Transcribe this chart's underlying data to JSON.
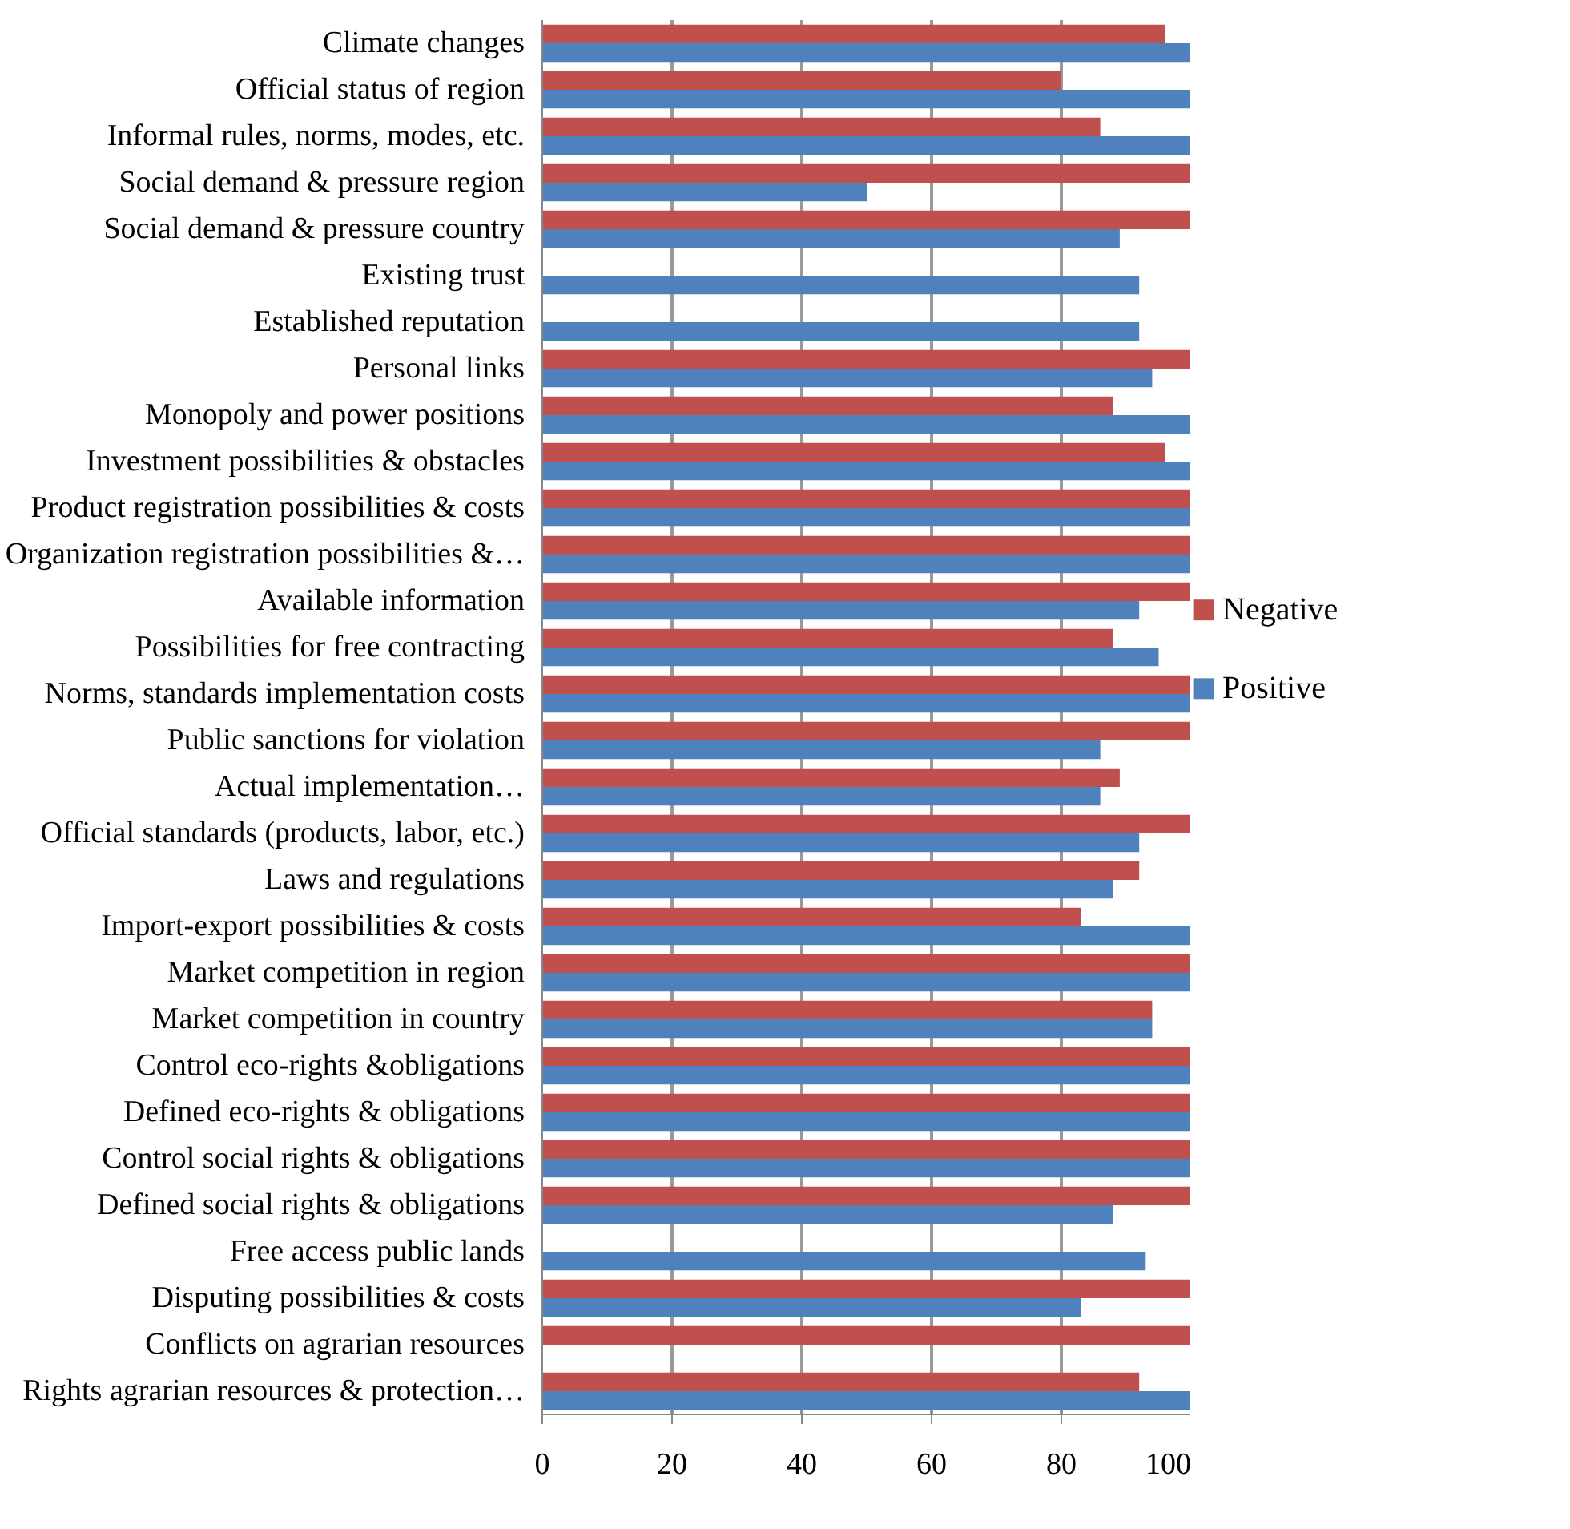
{
  "chart_data": {
    "type": "bar",
    "orientation": "horizontal",
    "categories": [
      "Climate changes",
      "Official status of region",
      "Informal rules, norms, modes, etc.",
      "Social demand & pressure region",
      "Social demand & pressure country",
      "Existing trust",
      "Established reputation",
      "Personal links",
      "Monopoly and power positions",
      "Investment possibilities & obstacles",
      "Product registration possibilities & costs",
      "Organization registration possibilities &…",
      "Available information",
      "Possibilities for free contracting",
      "Norms, standards implementation costs",
      "Public sanctions for violation",
      "Actual implementation…",
      "Official standards (products, labor, etc.)",
      "Laws and regulations",
      "Import-export possibilities & costs",
      "Market competition in region",
      "Market competition in country",
      "Control eco-rights &obligations",
      "Defined eco-rights & obligations",
      "Control social rights & obligations",
      "Defined social rights & obligations",
      "Free access public lands",
      "Disputing possibilities & costs",
      "Conflicts on agrarian resources",
      "Rights agrarian resources & protection…"
    ],
    "series": [
      {
        "name": "Negative",
        "color": "#c0504d",
        "values": [
          96,
          80,
          86,
          100,
          100,
          null,
          null,
          100,
          88,
          96,
          100,
          100,
          100,
          88,
          100,
          100,
          89,
          100,
          92,
          83,
          100,
          94,
          100,
          100,
          100,
          100,
          null,
          100,
          100,
          92
        ]
      },
      {
        "name": "Positive",
        "color": "#4f81bd",
        "values": [
          100,
          100,
          100,
          50,
          89,
          92,
          92,
          94,
          100,
          100,
          100,
          100,
          92,
          95,
          100,
          86,
          86,
          92,
          88,
          100,
          100,
          94,
          100,
          100,
          100,
          88,
          93,
          83,
          null,
          100
        ]
      }
    ],
    "xlim": [
      0,
      100
    ],
    "xticks": [
      0,
      20,
      40,
      60,
      80,
      100
    ],
    "grid": "x",
    "legend": "right"
  }
}
